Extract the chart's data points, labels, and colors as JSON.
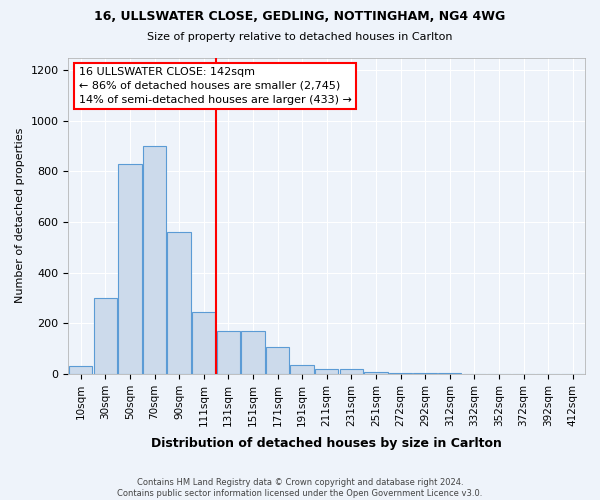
{
  "title1": "16, ULLSWATER CLOSE, GEDLING, NOTTINGHAM, NG4 4WG",
  "title2": "Size of property relative to detached houses in Carlton",
  "xlabel": "Distribution of detached houses by size in Carlton",
  "ylabel": "Number of detached properties",
  "categories": [
    "10sqm",
    "30sqm",
    "50sqm",
    "70sqm",
    "90sqm",
    "111sqm",
    "131sqm",
    "151sqm",
    "171sqm",
    "191sqm",
    "211sqm",
    "231sqm",
    "251sqm",
    "272sqm",
    "292sqm",
    "312sqm",
    "332sqm",
    "352sqm",
    "372sqm",
    "392sqm",
    "412sqm"
  ],
  "values": [
    30,
    300,
    830,
    900,
    560,
    245,
    170,
    170,
    105,
    35,
    20,
    20,
    10,
    5,
    5,
    3,
    0,
    0,
    0,
    0,
    0
  ],
  "bar_color": "#ccdaeb",
  "bar_edge_color": "#5b9bd5",
  "annotation_line1": "16 ULLSWATER CLOSE: 142sqm",
  "annotation_line2": "← 86% of detached houses are smaller (2,745)",
  "annotation_line3": "14% of semi-detached houses are larger (433) →",
  "red_line_index": 5.5,
  "ylim": [
    0,
    1250
  ],
  "yticks": [
    0,
    200,
    400,
    600,
    800,
    1000,
    1200
  ],
  "footnote": "Contains HM Land Registry data © Crown copyright and database right 2024.\nContains public sector information licensed under the Open Government Licence v3.0.",
  "background_color": "#eef3fa"
}
